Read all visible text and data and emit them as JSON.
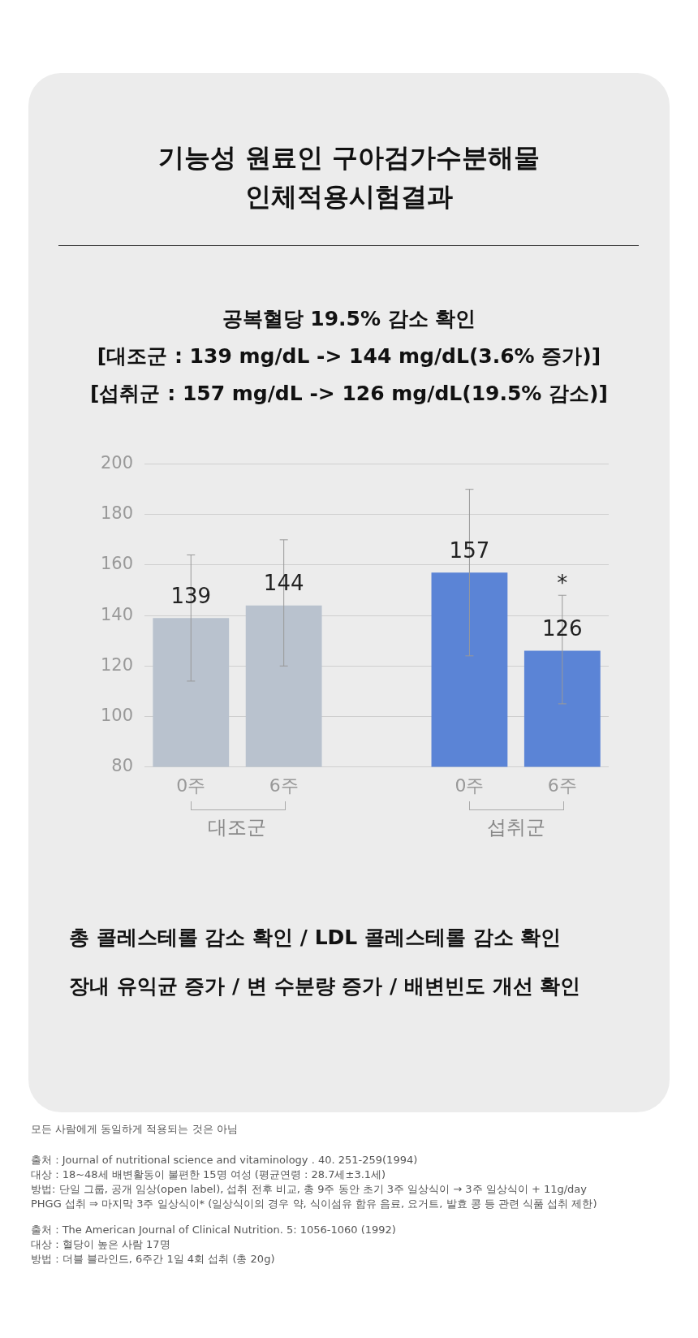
{
  "chart_data": {
    "type": "bar",
    "title": "기능성 원료인 구아검가수분해물\n인체적용시험결과",
    "subtitle": "공복혈당 19.5% 감소 확인\n[대조군 : 139 mg/dL -> 144 mg/dL(3.6% 증가)]\n[섭취군 : 157 mg/dL -> 126 mg/dL(19.5% 감소)]",
    "categories": [
      "0주",
      "6주",
      null,
      "0주",
      "6주"
    ],
    "values": [
      139,
      144,
      null,
      157,
      126
    ],
    "colors": [
      "#b9c2ce",
      "#b9c2ce",
      null,
      "#5b84d6",
      "#5b84d6"
    ],
    "errors": [
      [
        114,
        164
      ],
      [
        120,
        170
      ],
      null,
      [
        124,
        190
      ],
      [
        105,
        148
      ]
    ],
    "ylim": [
      80,
      200
    ],
    "yticks": [
      80,
      100,
      120,
      140,
      160,
      180,
      200
    ],
    "grid": "y",
    "legend": false,
    "data_labels": true,
    "annotations": [
      "대조군",
      "섭취군",
      "*",
      "총 콜레스테롤 감소 확인 / LDL 콜레스테롤 감소 확인",
      "장내 유익균 증가 / 변 수분량 증가 / 배변빈도 개선 확인",
      "모든 사람에게 동일하게 적용되는 것은 아님",
      "출처 : Journal of nutritional science and vitaminology . 40. 251-259(1994)\n대상 : 18~48세 배변활동이 불편한 15명 여성 (평균연령 : 28.7세±3.1세)\n방법: 단일 그룹, 공개 임상(open label), 섭취 전후 비교, 총 9주 동안 초기 3주 일상식이 → 3주 일상식이 + 11g/day\n        PHGG 섭취  ⇒ 마지막 3주 일상식이* (일상식이의 경우 약, 식이섬유 함유 음료, 요거트, 발효 콩 등 관련 식품 섭취 제한)",
      "출처 : The American Journal of Clinical Nutrition. 5: 1056-1060 (1992)\n대상 : 혈당이 높은 사람 17명\n방법 : 더블 블라인드, 6주간 1일 4회 섭취 (총 20g)"
    ]
  }
}
